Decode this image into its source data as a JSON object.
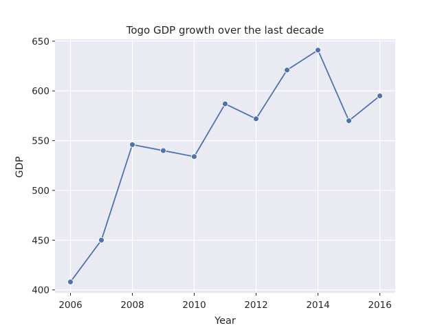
{
  "chart_data": {
    "type": "line",
    "title": "Togo GDP growth over the last decade",
    "xlabel": "Year",
    "ylabel": "GDP",
    "x": [
      2006,
      2007,
      2008,
      2009,
      2010,
      2011,
      2012,
      2013,
      2014,
      2015,
      2016
    ],
    "series": [
      {
        "values": [
          408,
          450,
          546,
          540,
          534,
          587,
          572,
          621,
          641,
          570,
          595
        ]
      }
    ],
    "xlim": [
      2005.5,
      2016.5
    ],
    "ylim": [
      397,
      652
    ],
    "xticks": [
      2006,
      2008,
      2010,
      2012,
      2014,
      2016
    ],
    "yticks": [
      400,
      450,
      500,
      550,
      600,
      650
    ],
    "grid": true,
    "legend": "none",
    "colors": {
      "line": "#4c72b0",
      "plot_background": "#eaeaf2",
      "grid": "#ffffff",
      "text": "#262626"
    }
  }
}
